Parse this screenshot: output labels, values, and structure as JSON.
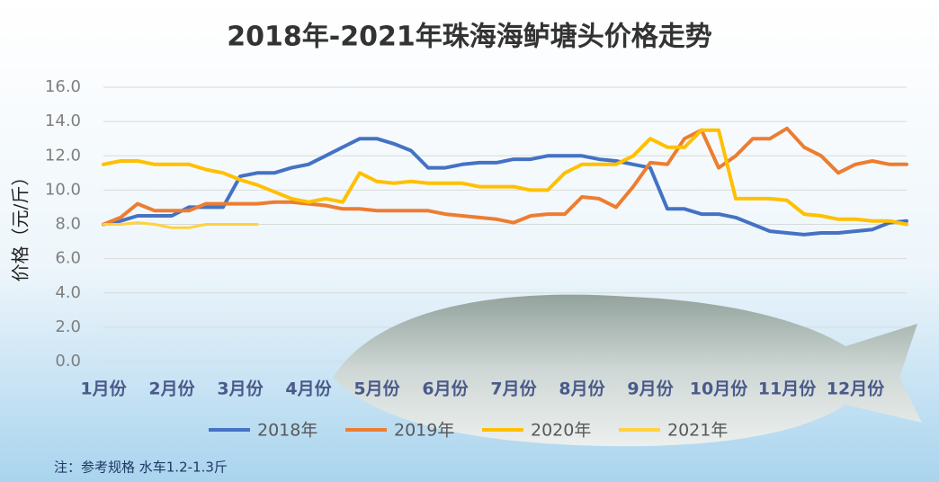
{
  "chart_data": {
    "type": "line",
    "title": "2018年-2021年珠海海鲈塘头价格走势",
    "y_label": "价格（元/斤）",
    "note": "注：参考规格  水车1.2-1.3斤",
    "categories": [
      "1月份",
      null,
      null,
      null,
      "2月份",
      null,
      null,
      null,
      "3月份",
      null,
      null,
      null,
      "4月份",
      null,
      null,
      null,
      "5月份",
      null,
      null,
      null,
      "6月份",
      null,
      null,
      null,
      "7月份",
      null,
      null,
      null,
      "8月份",
      null,
      null,
      null,
      "9月份",
      null,
      null,
      null,
      "10月份",
      null,
      null,
      null,
      "11月份",
      null,
      null,
      null,
      "12月份",
      null,
      null,
      null
    ],
    "series": [
      {
        "name": "2018年",
        "color": "#4472c4",
        "values": [
          8.0,
          8.2,
          8.5,
          8.5,
          8.5,
          9.0,
          9.0,
          9.0,
          10.8,
          11.0,
          11.0,
          11.3,
          11.5,
          12.0,
          12.5,
          13.0,
          13.0,
          12.7,
          12.3,
          11.3,
          11.3,
          11.5,
          11.6,
          11.6,
          11.8,
          11.8,
          12.0,
          12.0,
          12.0,
          11.8,
          11.7,
          11.5,
          11.3,
          8.9,
          8.9,
          8.6,
          8.6,
          8.4,
          8.0,
          7.6,
          7.5,
          7.4,
          7.5,
          7.5,
          7.6,
          7.7,
          8.1,
          8.2
        ]
      },
      {
        "name": "2019年",
        "color": "#ed7d31",
        "values": [
          8.0,
          8.4,
          9.2,
          8.8,
          8.8,
          8.8,
          9.2,
          9.2,
          9.2,
          9.2,
          9.3,
          9.3,
          9.2,
          9.1,
          8.9,
          8.9,
          8.8,
          8.8,
          8.8,
          8.8,
          8.6,
          8.5,
          8.4,
          8.3,
          8.1,
          8.5,
          8.6,
          8.6,
          9.6,
          9.5,
          9.0,
          10.2,
          11.6,
          11.5,
          13.0,
          13.5,
          11.3,
          12.0,
          13.0,
          13.0,
          13.6,
          12.5,
          12.0,
          11.0,
          11.5,
          11.7,
          11.5,
          11.5
        ]
      },
      {
        "name": "2020年",
        "color": "#ffc000",
        "values": [
          11.5,
          11.7,
          11.7,
          11.5,
          11.5,
          11.5,
          11.2,
          11.0,
          10.6,
          10.3,
          9.9,
          9.5,
          9.3,
          9.5,
          9.3,
          11.0,
          10.5,
          10.4,
          10.5,
          10.4,
          10.4,
          10.4,
          10.2,
          10.2,
          10.2,
          10.0,
          10.0,
          11.0,
          11.5,
          11.5,
          11.5,
          12.0,
          13.0,
          12.5,
          12.5,
          13.5,
          13.5,
          9.5,
          9.5,
          9.5,
          9.4,
          8.6,
          8.5,
          8.3,
          8.3,
          8.2,
          8.2,
          8.0
        ]
      },
      {
        "name": "2021年",
        "color": "#ffd23f",
        "values": [
          8.0,
          8.0,
          8.1,
          8.0,
          7.8,
          7.8,
          8.0,
          8.0,
          8.0,
          8.0,
          null,
          null,
          null,
          null,
          null,
          null,
          null,
          null,
          null,
          null,
          null,
          null,
          null,
          null,
          null,
          null,
          null,
          null,
          null,
          null,
          null,
          null,
          null,
          null,
          null,
          null,
          null,
          null,
          null,
          null,
          null,
          null,
          null,
          null,
          null,
          null,
          null,
          null
        ]
      }
    ],
    "ylim": [
      0,
      16
    ],
    "yticks": [
      {
        "value": 0,
        "label": "0.0"
      },
      {
        "value": 2,
        "label": "2.0"
      },
      {
        "value": 4,
        "label": "4.0"
      },
      {
        "value": 6,
        "label": "6.0"
      },
      {
        "value": 8,
        "label": "8.0"
      },
      {
        "value": 10,
        "label": "10.0"
      },
      {
        "value": 12,
        "label": "12.0"
      },
      {
        "value": 14,
        "label": "14.0"
      },
      {
        "value": 16,
        "label": "16.0"
      }
    ],
    "grid": true
  }
}
